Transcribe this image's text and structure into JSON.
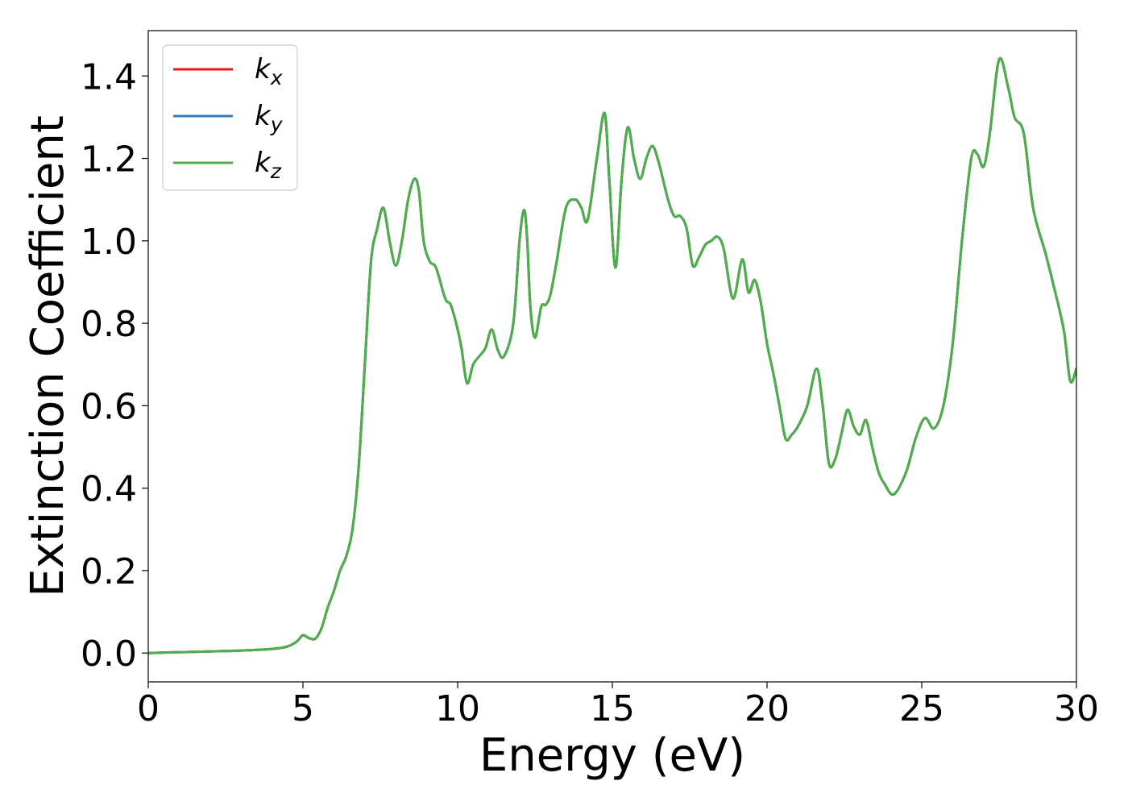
{
  "chart_data": {
    "type": "line",
    "xlabel": "Energy (eV)",
    "ylabel": "Extinction Coefficient",
    "xlim": [
      0,
      30
    ],
    "ylim": [
      -0.07,
      1.51
    ],
    "xticks": [
      0,
      5,
      10,
      15,
      20,
      25,
      30
    ],
    "xtick_labels": [
      "0",
      "5",
      "10",
      "15",
      "20",
      "25",
      "30"
    ],
    "yticks": [
      0.0,
      0.2,
      0.4,
      0.6,
      0.8,
      1.0,
      1.2,
      1.4
    ],
    "ytick_labels": [
      "0.0",
      "0.2",
      "0.4",
      "0.6",
      "0.8",
      "1.0",
      "1.2",
      "1.4"
    ],
    "grid": false,
    "legend_position": "top-left",
    "series": [
      {
        "name": "k",
        "subscript": "x",
        "color": "#e41a1c",
        "x": [
          0,
          1,
          2,
          3,
          4,
          4.5,
          4.8,
          5.0,
          5.2,
          5.4,
          5.6,
          5.8,
          6.0,
          6.2,
          6.4,
          6.6,
          6.8,
          7.0,
          7.2,
          7.4,
          7.6,
          7.8,
          8.0,
          8.2,
          8.4,
          8.6,
          8.75,
          8.9,
          9.1,
          9.3,
          9.6,
          9.8,
          10.1,
          10.3,
          10.5,
          10.7,
          10.9,
          11.1,
          11.3,
          11.5,
          11.8,
          12.0,
          12.15,
          12.25,
          12.35,
          12.5,
          12.7,
          12.85,
          13.0,
          13.2,
          13.5,
          13.8,
          14.0,
          14.2,
          14.5,
          14.75,
          14.9,
          15.1,
          15.3,
          15.5,
          15.7,
          15.9,
          16.1,
          16.3,
          16.5,
          16.8,
          17.0,
          17.2,
          17.4,
          17.6,
          17.8,
          18.0,
          18.2,
          18.4,
          18.6,
          18.9,
          19.2,
          19.4,
          19.6,
          19.8,
          20.0,
          20.2,
          20.4,
          20.6,
          20.8,
          21.0,
          21.3,
          21.6,
          21.8,
          22.0,
          22.2,
          22.4,
          22.6,
          22.8,
          23.0,
          23.2,
          23.4,
          23.6,
          23.8,
          24.1,
          24.5,
          24.8,
          25.1,
          25.4,
          25.7,
          26.0,
          26.3,
          26.6,
          26.8,
          27.0,
          27.2,
          27.5,
          27.8,
          28.0,
          28.3,
          28.6,
          29.0,
          29.3,
          29.6,
          29.8,
          30.0
        ],
        "values": [
          0.0,
          0.002,
          0.004,
          0.006,
          0.01,
          0.016,
          0.028,
          0.043,
          0.036,
          0.035,
          0.06,
          0.11,
          0.15,
          0.2,
          0.235,
          0.3,
          0.45,
          0.7,
          0.95,
          1.03,
          1.08,
          1.0,
          0.94,
          1.0,
          1.1,
          1.15,
          1.12,
          1.0,
          0.95,
          0.935,
          0.86,
          0.84,
          0.75,
          0.655,
          0.7,
          0.72,
          0.74,
          0.785,
          0.735,
          0.72,
          0.8,
          1.0,
          1.075,
          1.0,
          0.84,
          0.765,
          0.84,
          0.845,
          0.87,
          0.95,
          1.08,
          1.1,
          1.08,
          1.05,
          1.2,
          1.31,
          1.15,
          0.935,
          1.15,
          1.275,
          1.2,
          1.15,
          1.2,
          1.23,
          1.19,
          1.1,
          1.06,
          1.06,
          1.03,
          0.94,
          0.96,
          0.99,
          1.0,
          1.01,
          0.98,
          0.86,
          0.955,
          0.875,
          0.905,
          0.85,
          0.75,
          0.68,
          0.6,
          0.52,
          0.53,
          0.55,
          0.6,
          0.69,
          0.6,
          0.46,
          0.47,
          0.53,
          0.59,
          0.55,
          0.53,
          0.565,
          0.5,
          0.44,
          0.41,
          0.385,
          0.44,
          0.52,
          0.57,
          0.545,
          0.6,
          0.75,
          1.0,
          1.2,
          1.21,
          1.18,
          1.26,
          1.44,
          1.37,
          1.3,
          1.26,
          1.08,
          0.97,
          0.88,
          0.78,
          0.66,
          0.69
        ]
      },
      {
        "name": "k",
        "subscript": "y",
        "color": "#377eb8",
        "x": [
          0,
          1,
          2,
          3,
          4,
          4.5,
          4.8,
          5.0,
          5.2,
          5.4,
          5.6,
          5.8,
          6.0,
          6.2,
          6.4,
          6.6,
          6.8,
          7.0,
          7.2,
          7.4,
          7.6,
          7.8,
          8.0,
          8.2,
          8.4,
          8.6,
          8.75,
          8.9,
          9.1,
          9.3,
          9.6,
          9.8,
          10.1,
          10.3,
          10.5,
          10.7,
          10.9,
          11.1,
          11.3,
          11.5,
          11.8,
          12.0,
          12.15,
          12.25,
          12.35,
          12.5,
          12.7,
          12.85,
          13.0,
          13.2,
          13.5,
          13.8,
          14.0,
          14.2,
          14.5,
          14.75,
          14.9,
          15.1,
          15.3,
          15.5,
          15.7,
          15.9,
          16.1,
          16.3,
          16.5,
          16.8,
          17.0,
          17.2,
          17.4,
          17.6,
          17.8,
          18.0,
          18.2,
          18.4,
          18.6,
          18.9,
          19.2,
          19.4,
          19.6,
          19.8,
          20.0,
          20.2,
          20.4,
          20.6,
          20.8,
          21.0,
          21.3,
          21.6,
          21.8,
          22.0,
          22.2,
          22.4,
          22.6,
          22.8,
          23.0,
          23.2,
          23.4,
          23.6,
          23.8,
          24.1,
          24.5,
          24.8,
          25.1,
          25.4,
          25.7,
          26.0,
          26.3,
          26.6,
          26.8,
          27.0,
          27.2,
          27.5,
          27.8,
          28.0,
          28.3,
          28.6,
          29.0,
          29.3,
          29.6,
          29.8,
          30.0
        ],
        "values": [
          0.0,
          0.002,
          0.004,
          0.006,
          0.01,
          0.016,
          0.028,
          0.043,
          0.036,
          0.035,
          0.06,
          0.11,
          0.15,
          0.2,
          0.235,
          0.3,
          0.45,
          0.7,
          0.95,
          1.03,
          1.08,
          1.0,
          0.94,
          1.0,
          1.1,
          1.15,
          1.12,
          1.0,
          0.95,
          0.935,
          0.86,
          0.84,
          0.75,
          0.655,
          0.7,
          0.72,
          0.74,
          0.785,
          0.735,
          0.72,
          0.8,
          1.0,
          1.075,
          1.0,
          0.84,
          0.765,
          0.84,
          0.845,
          0.87,
          0.95,
          1.08,
          1.1,
          1.08,
          1.05,
          1.2,
          1.31,
          1.15,
          0.935,
          1.15,
          1.275,
          1.2,
          1.15,
          1.2,
          1.23,
          1.19,
          1.1,
          1.06,
          1.06,
          1.03,
          0.94,
          0.96,
          0.99,
          1.0,
          1.01,
          0.98,
          0.86,
          0.955,
          0.875,
          0.905,
          0.85,
          0.75,
          0.68,
          0.6,
          0.52,
          0.53,
          0.55,
          0.6,
          0.69,
          0.6,
          0.46,
          0.47,
          0.53,
          0.59,
          0.55,
          0.53,
          0.565,
          0.5,
          0.44,
          0.41,
          0.385,
          0.44,
          0.52,
          0.57,
          0.545,
          0.6,
          0.75,
          1.0,
          1.2,
          1.21,
          1.18,
          1.26,
          1.44,
          1.37,
          1.3,
          1.26,
          1.08,
          0.97,
          0.88,
          0.78,
          0.66,
          0.69
        ]
      },
      {
        "name": "k",
        "subscript": "z",
        "color": "#4daf4a",
        "x": [
          0,
          1,
          2,
          3,
          4,
          4.5,
          4.8,
          5.0,
          5.2,
          5.4,
          5.6,
          5.8,
          6.0,
          6.2,
          6.4,
          6.6,
          6.8,
          7.0,
          7.2,
          7.4,
          7.6,
          7.8,
          8.0,
          8.2,
          8.4,
          8.6,
          8.75,
          8.9,
          9.1,
          9.3,
          9.6,
          9.8,
          10.1,
          10.3,
          10.5,
          10.7,
          10.9,
          11.1,
          11.3,
          11.5,
          11.8,
          12.0,
          12.15,
          12.25,
          12.35,
          12.5,
          12.7,
          12.85,
          13.0,
          13.2,
          13.5,
          13.8,
          14.0,
          14.2,
          14.5,
          14.75,
          14.9,
          15.1,
          15.3,
          15.5,
          15.7,
          15.9,
          16.1,
          16.3,
          16.5,
          16.8,
          17.0,
          17.2,
          17.4,
          17.6,
          17.8,
          18.0,
          18.2,
          18.4,
          18.6,
          18.9,
          19.2,
          19.4,
          19.6,
          19.8,
          20.0,
          20.2,
          20.4,
          20.6,
          20.8,
          21.0,
          21.3,
          21.6,
          21.8,
          22.0,
          22.2,
          22.4,
          22.6,
          22.8,
          23.0,
          23.2,
          23.4,
          23.6,
          23.8,
          24.1,
          24.5,
          24.8,
          25.1,
          25.4,
          25.7,
          26.0,
          26.3,
          26.6,
          26.8,
          27.0,
          27.2,
          27.5,
          27.8,
          28.0,
          28.3,
          28.6,
          29.0,
          29.3,
          29.6,
          29.8,
          30.0
        ],
        "values": [
          0.0,
          0.002,
          0.004,
          0.006,
          0.01,
          0.016,
          0.028,
          0.043,
          0.036,
          0.035,
          0.06,
          0.11,
          0.15,
          0.2,
          0.235,
          0.3,
          0.45,
          0.7,
          0.95,
          1.03,
          1.08,
          1.0,
          0.94,
          1.0,
          1.1,
          1.15,
          1.12,
          1.0,
          0.95,
          0.935,
          0.86,
          0.84,
          0.75,
          0.655,
          0.7,
          0.72,
          0.74,
          0.785,
          0.735,
          0.72,
          0.8,
          1.0,
          1.075,
          1.0,
          0.84,
          0.765,
          0.84,
          0.845,
          0.87,
          0.95,
          1.08,
          1.1,
          1.08,
          1.05,
          1.2,
          1.31,
          1.15,
          0.935,
          1.15,
          1.275,
          1.2,
          1.15,
          1.2,
          1.23,
          1.19,
          1.1,
          1.06,
          1.06,
          1.03,
          0.94,
          0.96,
          0.99,
          1.0,
          1.01,
          0.98,
          0.86,
          0.955,
          0.875,
          0.905,
          0.85,
          0.75,
          0.68,
          0.6,
          0.52,
          0.53,
          0.55,
          0.6,
          0.69,
          0.6,
          0.46,
          0.47,
          0.53,
          0.59,
          0.55,
          0.53,
          0.565,
          0.5,
          0.44,
          0.41,
          0.385,
          0.44,
          0.52,
          0.57,
          0.545,
          0.6,
          0.75,
          1.0,
          1.2,
          1.21,
          1.18,
          1.26,
          1.44,
          1.37,
          1.3,
          1.26,
          1.08,
          0.97,
          0.88,
          0.78,
          0.66,
          0.69
        ]
      }
    ]
  }
}
